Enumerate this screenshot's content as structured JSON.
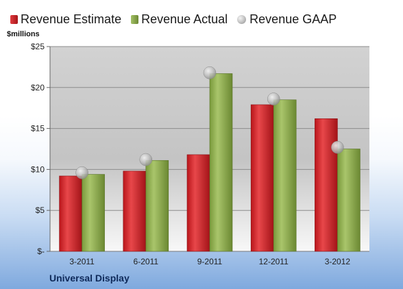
{
  "legend": {
    "estimate": "Revenue Estimate",
    "actual": "Revenue Actual",
    "gaap": "Revenue GAAP"
  },
  "unit_label": "$millions",
  "company": "Universal Display",
  "colors": {
    "estimate": "#cc1f24",
    "actual": "#8aa848",
    "gaap": "#b5b5b5"
  },
  "chart_data": {
    "type": "bar",
    "categories": [
      "3-2011",
      "6-2011",
      "9-2011",
      "12-2011",
      "3-2012"
    ],
    "series": [
      {
        "name": "Revenue Estimate",
        "type": "bar",
        "values": [
          9.2,
          9.8,
          11.8,
          17.9,
          16.2
        ]
      },
      {
        "name": "Revenue Actual",
        "type": "bar",
        "values": [
          9.4,
          11.1,
          21.7,
          18.5,
          12.5
        ]
      },
      {
        "name": "Revenue GAAP",
        "type": "scatter",
        "values": [
          9.6,
          11.2,
          21.8,
          18.6,
          12.7
        ]
      }
    ],
    "ylim": [
      0,
      25
    ],
    "yticks": [
      0,
      5,
      10,
      15,
      20,
      25
    ],
    "ytick_labels": [
      "$-",
      "$5",
      "$10",
      "$15",
      "$20",
      "$25"
    ],
    "ylabel": "$millions",
    "xlabel": "",
    "grid": true,
    "legend_position": "top"
  }
}
